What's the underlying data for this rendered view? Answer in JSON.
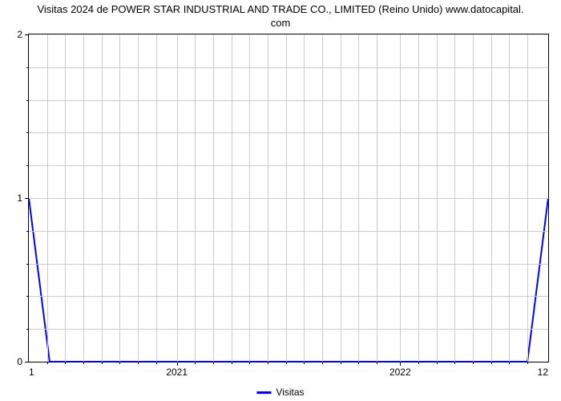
{
  "chart": {
    "type": "line",
    "title_line1": "Visitas 2024 de POWER STAR INDUSTRIAL AND TRADE CO., LIMITED (Reino Unido) www.datocapital.",
    "title_line2": "com",
    "title_fontsize": 13,
    "background_color": "#ffffff",
    "grid_color": "#cccccc",
    "axis_color": "#000000",
    "y": {
      "min": 0,
      "max": 2,
      "major_ticks": [
        0,
        1,
        2
      ],
      "minor_h_grid_count_per_major": 4
    },
    "x": {
      "left_label": "1",
      "right_label": "12",
      "major_tick_labels": [
        "2021",
        "2022"
      ],
      "major_tick_positions_pct": [
        28.5,
        71.5
      ],
      "minor_tick_positions_pct": [
        3.5,
        7,
        10.5,
        14,
        17.5,
        21,
        24.5,
        32,
        35.5,
        39,
        42.5,
        46,
        49.5,
        53,
        56.5,
        60,
        63.5,
        67,
        75,
        78.5,
        82,
        85.5,
        89,
        92.5,
        96
      ]
    },
    "series": {
      "label": "Visitas",
      "color": "#0000ff",
      "line_width": 2,
      "points": [
        {
          "x_pct": 0,
          "y_val": 1
        },
        {
          "x_pct": 4,
          "y_val": 0
        },
        {
          "x_pct": 96,
          "y_val": 0
        },
        {
          "x_pct": 100,
          "y_val": 1
        }
      ]
    },
    "label_fontsize": 12
  }
}
